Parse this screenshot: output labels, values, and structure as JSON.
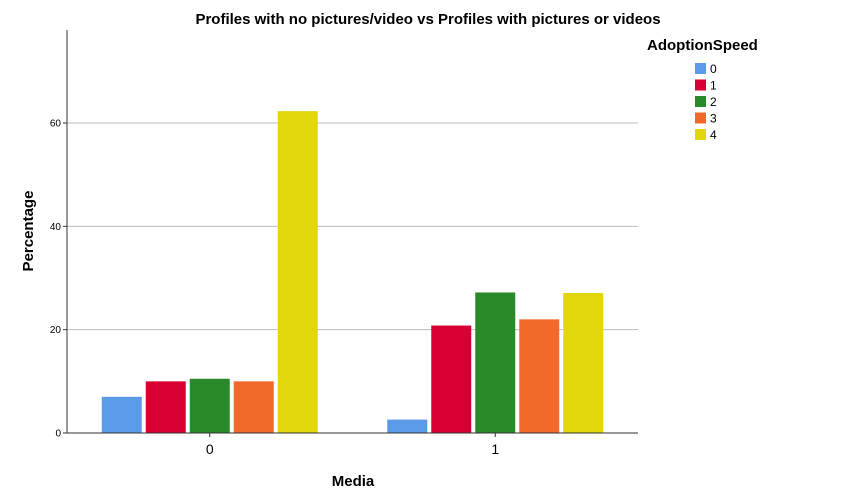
{
  "chart_data": {
    "type": "bar",
    "title": "Profiles with no pictures/video vs Profiles with pictures or videos",
    "xlabel": "Media",
    "ylabel": "Percentage",
    "categories": [
      "0",
      "1"
    ],
    "ylim": [
      0,
      78
    ],
    "yticks": [
      0,
      20,
      40,
      60
    ],
    "grid": true,
    "legend": {
      "title": "AdoptionSpeed",
      "placement": "top-right"
    },
    "series": [
      {
        "name": "0",
        "color": "#5b9ae6",
        "values": [
          7,
          2.6
        ]
      },
      {
        "name": "1",
        "color": "#d80032",
        "values": [
          10,
          20.8
        ]
      },
      {
        "name": "2",
        "color": "#2a8a2a",
        "values": [
          10.5,
          27.2
        ]
      },
      {
        "name": "3",
        "color": "#f26a2a",
        "values": [
          10,
          22
        ]
      },
      {
        "name": "4",
        "color": "#e2d60c",
        "values": [
          62.3,
          27.1
        ]
      }
    ]
  }
}
